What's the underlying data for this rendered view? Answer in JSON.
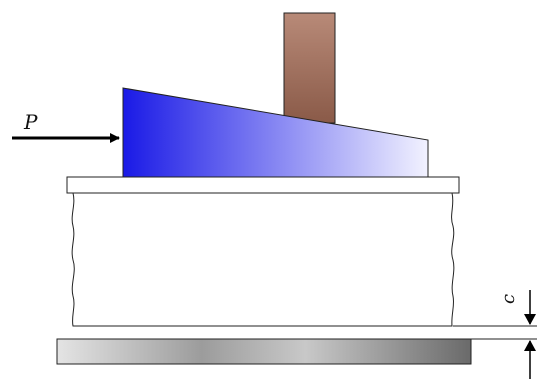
{
  "labels": {
    "force": "P",
    "clearance": "c"
  },
  "colors": {
    "wedge_left": "#1a1ae6",
    "wedge_right": "#f2f2ff",
    "plunger_top": "#b88a78",
    "plunger_bottom": "#8a5a48",
    "base_plate_light": "#e4e4e4",
    "base_plate_dark": "#6a6a6a",
    "outline": "#222222",
    "background": "#ffffff"
  }
}
